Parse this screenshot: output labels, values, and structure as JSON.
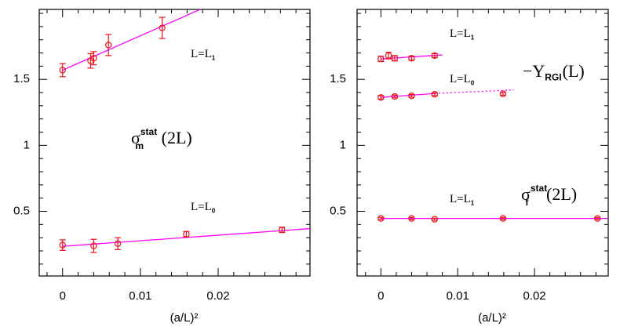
{
  "chart_data": [
    {
      "type": "scatter",
      "xlim": [
        -0.003,
        0.0318
      ],
      "ylim": [
        0.01,
        2.03
      ],
      "xticks": [
        0,
        0.01,
        0.02
      ],
      "yticks": [
        0.5,
        1,
        1.5
      ],
      "xminorticks": [
        -0.002,
        0.002,
        0.004,
        0.006,
        0.008,
        0.012,
        0.014,
        0.016,
        0.018,
        0.022,
        0.024,
        0.026,
        0.028,
        0.03
      ],
      "yminorticks": [
        0.1,
        0.2,
        0.3,
        0.4,
        0.6,
        0.7,
        0.8,
        0.9,
        1.1,
        1.2,
        1.3,
        1.4,
        1.6,
        1.7,
        1.8,
        1.9,
        2.0
      ],
      "xlabel": "(a/L)²",
      "series": [
        {
          "color": "#e8141e",
          "x": [
            0,
            0.0036,
            0.004,
            0.0059,
            0.0128
          ],
          "values": [
            1.57,
            1.64,
            1.66,
            1.76,
            1.89
          ],
          "errors": [
            0.05,
            0.055,
            0.05,
            0.08,
            0.08
          ]
        },
        {
          "color": "#e8141e",
          "x": [
            0,
            0.004,
            0.0071,
            0.0159,
            0.0282
          ],
          "values": [
            0.244,
            0.238,
            0.255,
            0.327,
            0.36
          ],
          "errors": [
            0.04,
            0.05,
            0.045,
            0.02,
            0.02
          ]
        }
      ],
      "fits": [
        {
          "color": "#ff00ff",
          "style": "solid",
          "x": [
            0,
            0.0177
          ],
          "values": [
            1.57,
            2.03
          ]
        },
        {
          "color": "#ff00ff",
          "style": "solid",
          "x": [
            0,
            0.0318
          ],
          "values": [
            0.235,
            0.369
          ]
        }
      ],
      "annotations": [
        {
          "base": "L=L",
          "sub": "1"
        },
        {
          "base": "σ",
          "sup": "stat",
          "sub": "m",
          "tail": "(2L)"
        },
        {
          "base": "L=L",
          "sub": "0"
        }
      ]
    },
    {
      "type": "scatter",
      "xlim": [
        -0.0031,
        0.0296
      ],
      "ylim": [
        0.01,
        2.03
      ],
      "xticks": [
        0,
        0.01,
        0.02
      ],
      "yticks": [
        0.5,
        1,
        1.5
      ],
      "xminorticks": [
        -0.002,
        0.002,
        0.004,
        0.006,
        0.008,
        0.012,
        0.014,
        0.016,
        0.018,
        0.022,
        0.024,
        0.026,
        0.028
      ],
      "yminorticks": [
        0.1,
        0.2,
        0.3,
        0.4,
        0.6,
        0.7,
        0.8,
        0.9,
        1.1,
        1.2,
        1.3,
        1.4,
        1.6,
        1.7,
        1.8,
        1.9,
        2.0
      ],
      "xlabel": "(a/L)²",
      "series": [
        {
          "color": "#e8141e",
          "x": [
            0,
            0.001,
            0.0018,
            0.004,
            0.007
          ],
          "values": [
            1.655,
            1.68,
            1.66,
            1.66,
            1.68
          ],
          "errors": [
            0.02,
            0.025,
            0.02,
            0.015,
            0.015
          ]
        },
        {
          "color": "#e8141e",
          "x": [
            0,
            0.0018,
            0.004,
            0.007,
            0.0159
          ],
          "values": [
            1.363,
            1.37,
            1.375,
            1.387,
            1.39
          ],
          "errors": [
            0.012,
            0.01,
            0.01,
            0.01,
            0.01
          ]
        },
        {
          "color": "#e8141e",
          "x": [
            0,
            0.004,
            0.007,
            0.0159,
            0.0282
          ],
          "values": [
            0.446,
            0.446,
            0.44,
            0.446,
            0.446
          ],
          "errors": [
            0.008,
            0.008,
            0.008,
            0.008,
            0.008
          ]
        }
      ],
      "fits": [
        {
          "color": "#ff00ff",
          "style": "solid",
          "x": [
            0,
            0.008
          ],
          "values": [
            1.655,
            1.685
          ]
        },
        {
          "color": "#ff00ff",
          "style": "solid",
          "x": [
            0,
            0.007
          ],
          "values": [
            1.363,
            1.393
          ]
        },
        {
          "color": "#ff00ff",
          "style": "dotted",
          "x": [
            0.007,
            0.0173
          ],
          "values": [
            1.393,
            1.42
          ]
        },
        {
          "color": "#ff00ff",
          "style": "solid",
          "x": [
            0,
            0.0296
          ],
          "values": [
            0.446,
            0.446
          ]
        }
      ],
      "annotations": [
        {
          "base": "L=L",
          "sub": "1"
        },
        {
          "base": "L=L",
          "sub": "0"
        },
        {
          "base": "−Y",
          "sub": "RGI",
          "tail": "(L)"
        },
        {
          "base": "L=L",
          "sub": "1"
        },
        {
          "base": "σ",
          "sup": "stat",
          "sub": "f",
          "tail": "(2L)"
        }
      ]
    }
  ]
}
